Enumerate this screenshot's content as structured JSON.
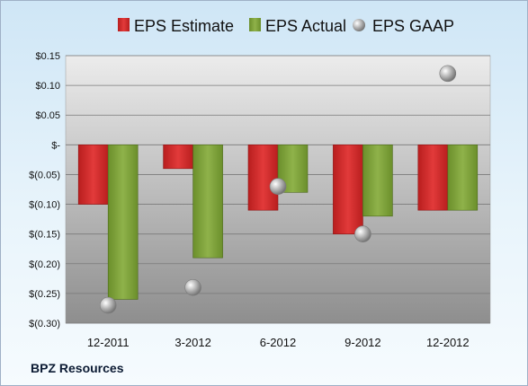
{
  "chart_data": {
    "type": "bar",
    "categories": [
      "12-2011",
      "3-2012",
      "6-2012",
      "9-2012",
      "12-2012"
    ],
    "series": [
      {
        "name": "EPS Estimate",
        "kind": "bar",
        "color": "#d42b2b",
        "values": [
          -0.1,
          -0.04,
          -0.11,
          -0.15,
          -0.11
        ]
      },
      {
        "name": "EPS Actual",
        "kind": "bar",
        "color": "#7fa33a",
        "values": [
          -0.26,
          -0.19,
          -0.08,
          -0.12,
          -0.11
        ]
      },
      {
        "name": "EPS GAAP",
        "kind": "marker",
        "color": "#a9a9a9",
        "values": [
          -0.27,
          -0.24,
          -0.07,
          -0.15,
          0.12
        ]
      }
    ],
    "ylim": [
      -0.3,
      0.15
    ],
    "yticks": [
      0.15,
      0.1,
      0.05,
      0.0,
      -0.05,
      -0.1,
      -0.15,
      -0.2,
      -0.25,
      -0.3
    ],
    "ytick_labels": [
      "$0.15",
      "$0.10",
      "$0.05",
      "$-",
      "$(0.05)",
      "$(0.10)",
      "$(0.15)",
      "$(0.20)",
      "$(0.25)",
      "$(0.30)"
    ],
    "grid": true,
    "legend_position": "top"
  },
  "footer": {
    "company": "BPZ Resources"
  }
}
